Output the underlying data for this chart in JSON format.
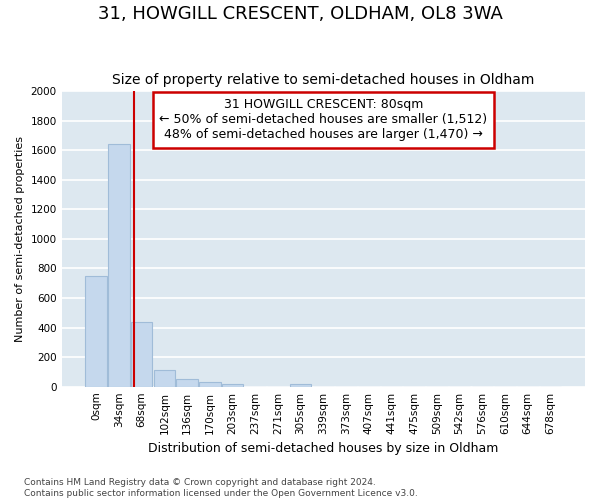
{
  "title": "31, HOWGILL CRESCENT, OLDHAM, OL8 3WA",
  "subtitle": "Size of property relative to semi-detached houses in Oldham",
  "xlabel": "Distribution of semi-detached houses by size in Oldham",
  "ylabel": "Number of semi-detached properties",
  "footnote1": "Contains HM Land Registry data © Crown copyright and database right 2024.",
  "footnote2": "Contains public sector information licensed under the Open Government Licence v3.0.",
  "categories": [
    "0sqm",
    "34sqm",
    "68sqm",
    "102sqm",
    "136sqm",
    "170sqm",
    "203sqm",
    "237sqm",
    "271sqm",
    "305sqm",
    "339sqm",
    "373sqm",
    "407sqm",
    "441sqm",
    "475sqm",
    "509sqm",
    "542sqm",
    "576sqm",
    "610sqm",
    "644sqm",
    "678sqm"
  ],
  "values": [
    750,
    1640,
    440,
    110,
    55,
    30,
    20,
    0,
    0,
    18,
    0,
    0,
    0,
    0,
    0,
    0,
    0,
    0,
    0,
    0,
    0
  ],
  "bar_color": "#c5d8ed",
  "bar_edge_color": "#a0bcd8",
  "ylim": [
    0,
    2000
  ],
  "yticks": [
    0,
    200,
    400,
    600,
    800,
    1000,
    1200,
    1400,
    1600,
    1800,
    2000
  ],
  "red_line_x": 1.65,
  "annotation_title": "31 HOWGILL CRESCENT: 80sqm",
  "annotation_line1": "← 50% of semi-detached houses are smaller (1,512)",
  "annotation_line2": "48% of semi-detached houses are larger (1,470) →",
  "annotation_box_color": "#ffffff",
  "annotation_box_edge_color": "#cc0000",
  "plot_bg_color": "#dde8f0",
  "fig_bg_color": "#ffffff",
  "grid_color": "#ffffff",
  "title_fontsize": 13,
  "subtitle_fontsize": 10,
  "xlabel_fontsize": 9,
  "ylabel_fontsize": 8,
  "tick_fontsize": 7.5,
  "annotation_fontsize": 9,
  "footnote_fontsize": 6.5
}
